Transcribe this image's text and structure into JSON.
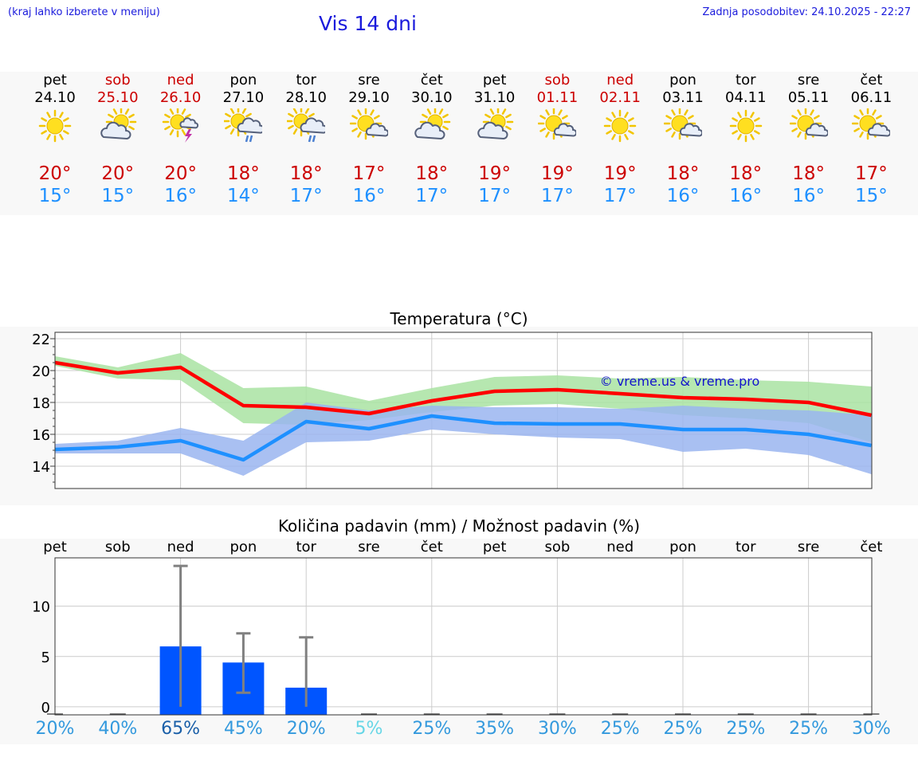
{
  "header": {
    "location_hint": "(kraj lahko izberete v meniju)",
    "title": "Vis 14 dni",
    "updated": "Zadnja posodobitev: 24.10.2025 - 22:27"
  },
  "days": [
    {
      "name": "pet",
      "date": "24.10",
      "weekend": false,
      "icon": "sun-icon",
      "tmax": "20°",
      "tmin": "15°"
    },
    {
      "name": "sob",
      "date": "25.10",
      "weekend": true,
      "icon": "sun-cloud-icon",
      "tmax": "20°",
      "tmin": "15°"
    },
    {
      "name": "ned",
      "date": "26.10",
      "weekend": true,
      "icon": "sun-thunder-icon",
      "tmax": "20°",
      "tmin": "16°"
    },
    {
      "name": "pon",
      "date": "27.10",
      "weekend": false,
      "icon": "sun-cloud-rain-icon",
      "tmax": "18°",
      "tmin": "14°"
    },
    {
      "name": "tor",
      "date": "28.10",
      "weekend": false,
      "icon": "sun-cloud-rain-icon",
      "tmax": "18°",
      "tmin": "17°"
    },
    {
      "name": "sre",
      "date": "29.10",
      "weekend": false,
      "icon": "sun-small-cloud-icon",
      "tmax": "17°",
      "tmin": "16°"
    },
    {
      "name": "čet",
      "date": "30.10",
      "weekend": false,
      "icon": "sun-cloud-icon",
      "tmax": "18°",
      "tmin": "17°"
    },
    {
      "name": "pet",
      "date": "31.10",
      "weekend": false,
      "icon": "sun-cloud-icon",
      "tmax": "19°",
      "tmin": "17°"
    },
    {
      "name": "sob",
      "date": "01.11",
      "weekend": true,
      "icon": "sun-small-cloud-icon",
      "tmax": "19°",
      "tmin": "17°"
    },
    {
      "name": "ned",
      "date": "02.11",
      "weekend": true,
      "icon": "sun-icon",
      "tmax": "19°",
      "tmin": "17°"
    },
    {
      "name": "pon",
      "date": "03.11",
      "weekend": false,
      "icon": "sun-small-cloud-icon",
      "tmax": "18°",
      "tmin": "16°"
    },
    {
      "name": "tor",
      "date": "04.11",
      "weekend": false,
      "icon": "sun-icon",
      "tmax": "18°",
      "tmin": "16°"
    },
    {
      "name": "sre",
      "date": "05.11",
      "weekend": false,
      "icon": "sun-small-cloud-icon",
      "tmax": "18°",
      "tmin": "16°"
    },
    {
      "name": "čet",
      "date": "06.11",
      "weekend": false,
      "icon": "sun-small-cloud-icon",
      "tmax": "17°",
      "tmin": "15°"
    }
  ],
  "chart_data": [
    {
      "type": "line",
      "title": "Temperatura (°C)",
      "watermark": "© vreme.us & vreme.pro",
      "ylim": [
        12.6,
        22.4
      ],
      "yticks": [
        14,
        16,
        18,
        20,
        22
      ],
      "grid": true,
      "x": [
        "24.10",
        "25.10",
        "26.10",
        "27.10",
        "28.10",
        "29.10",
        "30.10",
        "31.10",
        "01.11",
        "02.11",
        "03.11",
        "04.11",
        "05.11",
        "06.11"
      ],
      "series": [
        {
          "color": "#ff0000",
          "values": [
            20.5,
            19.85,
            20.2,
            17.8,
            17.7,
            17.3,
            18.1,
            18.7,
            18.8,
            18.55,
            18.3,
            18.2,
            18.0,
            17.2
          ],
          "band_low": [
            20.3,
            19.5,
            19.4,
            16.7,
            16.6,
            16.9,
            17.4,
            17.8,
            17.9,
            17.6,
            17.2,
            17.0,
            16.7,
            15.5
          ],
          "band_high": [
            20.9,
            20.2,
            21.1,
            18.9,
            19.0,
            18.1,
            18.9,
            19.6,
            19.7,
            19.5,
            19.6,
            19.4,
            19.3,
            19.0
          ],
          "band_color": "#a9e3a2"
        },
        {
          "color": "#1e90ff",
          "values": [
            15.05,
            15.2,
            15.6,
            14.4,
            16.8,
            16.35,
            17.15,
            16.7,
            16.65,
            16.65,
            16.3,
            16.3,
            16.0,
            15.3
          ],
          "band_low": [
            14.8,
            14.8,
            14.8,
            13.4,
            15.5,
            15.6,
            16.3,
            16.0,
            15.8,
            15.7,
            14.9,
            15.1,
            14.7,
            13.5
          ],
          "band_high": [
            15.4,
            15.6,
            16.4,
            15.6,
            18.0,
            17.5,
            17.8,
            17.7,
            17.7,
            17.6,
            17.8,
            17.6,
            17.5,
            17.2
          ],
          "band_color": "#9ab5f0"
        }
      ]
    },
    {
      "type": "bar",
      "title": "Količina padavin (mm) / Možnost padavin (%)",
      "ylim": [
        -0.8,
        14.8
      ],
      "yticks": [
        0,
        5,
        10
      ],
      "grid": true,
      "categories": [
        "pet",
        "sob",
        "ned",
        "pon",
        "tor",
        "sre",
        "čet",
        "pet",
        "sob",
        "ned",
        "pon",
        "tor",
        "sre",
        "čet"
      ],
      "values": [
        0,
        0,
        6.0,
        4.4,
        1.9,
        0,
        0,
        0,
        0,
        0,
        0,
        0,
        0,
        0
      ],
      "error_low": [
        0,
        0,
        0,
        1.4,
        0,
        0,
        0,
        0,
        0,
        0,
        0,
        0,
        0,
        0
      ],
      "error_high": [
        0,
        0,
        14.0,
        7.3,
        6.9,
        0,
        0,
        0,
        0,
        0,
        0,
        0,
        0,
        0
      ],
      "bar_color": "#0055ff",
      "probabilities": [
        "20%",
        "40%",
        "65%",
        "45%",
        "20%",
        "5%",
        "25%",
        "35%",
        "30%",
        "25%",
        "25%",
        "25%",
        "25%",
        "30%"
      ],
      "probability_colors": [
        "#3399dd",
        "#3399dd",
        "#1a5fa8",
        "#3399dd",
        "#3399dd",
        "#66d6e6",
        "#3399dd",
        "#3399dd",
        "#3399dd",
        "#3399dd",
        "#3399dd",
        "#3399dd",
        "#3399dd",
        "#3399dd"
      ]
    }
  ]
}
